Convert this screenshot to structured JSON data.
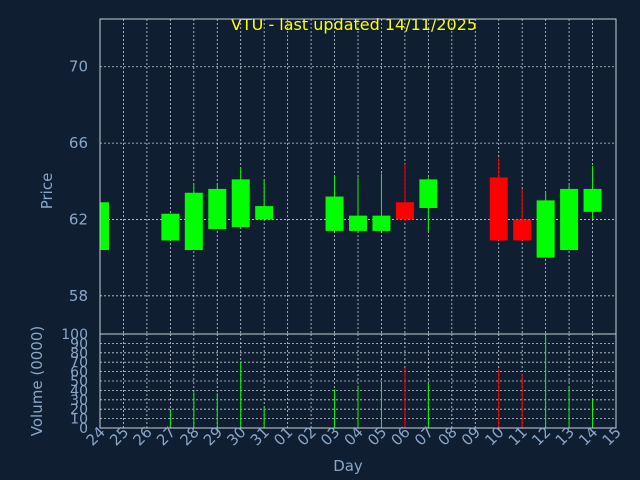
{
  "chart_data": [
    {
      "type": "candlestick",
      "title": "VTU - last updated 14/11/2025",
      "ylabel": "Price",
      "xlabel": "Day",
      "ylim": [
        56,
        72.5
      ],
      "yticks": [
        58,
        62,
        66,
        70
      ],
      "colors": {
        "up": "#00ff00",
        "down": "#ff0000"
      },
      "categories": [
        "24",
        "25",
        "26",
        "27",
        "28",
        "29",
        "30",
        "31",
        "01",
        "02",
        "03",
        "04",
        "05",
        "06",
        "07",
        "08",
        "09",
        "10",
        "11",
        "12",
        "13",
        "14",
        "15"
      ],
      "candles": [
        {
          "day": "24",
          "open": 60.4,
          "high": 62.9,
          "low": 60.4,
          "close": 62.9
        },
        {
          "day": "27",
          "open": 60.9,
          "high": 62.3,
          "low": 60.9,
          "close": 62.3
        },
        {
          "day": "28",
          "open": 60.4,
          "high": 63.8,
          "low": 60.4,
          "close": 63.4
        },
        {
          "day": "29",
          "open": 61.5,
          "high": 63.9,
          "low": 61.5,
          "close": 63.6
        },
        {
          "day": "30",
          "open": 61.6,
          "high": 64.7,
          "low": 61.6,
          "close": 64.1
        },
        {
          "day": "31",
          "open": 62.0,
          "high": 64.1,
          "low": 62.0,
          "close": 62.7
        },
        {
          "day": "03",
          "open": 61.4,
          "high": 64.3,
          "low": 61.4,
          "close": 63.2
        },
        {
          "day": "04",
          "open": 61.4,
          "high": 64.2,
          "low": 61.4,
          "close": 62.2
        },
        {
          "day": "05",
          "open": 61.4,
          "high": 64.4,
          "low": 61.4,
          "close": 62.2
        },
        {
          "day": "06",
          "open": 62.9,
          "high": 64.9,
          "low": 61.9,
          "close": 62.0
        },
        {
          "day": "07",
          "open": 62.6,
          "high": 64.2,
          "low": 61.4,
          "close": 64.1
        },
        {
          "day": "10",
          "open": 64.2,
          "high": 65.2,
          "low": 60.9,
          "close": 60.9
        },
        {
          "day": "11",
          "open": 62.0,
          "high": 63.6,
          "low": 60.9,
          "close": 60.9
        },
        {
          "day": "12",
          "open": 60.0,
          "high": 63.4,
          "low": 60.0,
          "close": 63.0
        },
        {
          "day": "13",
          "open": 60.4,
          "high": 63.8,
          "low": 60.4,
          "close": 63.6
        },
        {
          "day": "14",
          "open": 62.4,
          "high": 64.8,
          "low": 62.0,
          "close": 63.6
        }
      ]
    },
    {
      "type": "bar",
      "ylabel": "Volume (0000)",
      "xlabel": "Day",
      "ylim": [
        0,
        100
      ],
      "yticks": [
        0,
        10,
        20,
        30,
        40,
        50,
        60,
        70,
        80,
        90,
        100
      ],
      "volumes": [
        {
          "day": "27",
          "value": 20,
          "direction": "up"
        },
        {
          "day": "28",
          "value": 38,
          "direction": "up"
        },
        {
          "day": "29",
          "value": 37,
          "direction": "up"
        },
        {
          "day": "30",
          "value": 71,
          "direction": "up"
        },
        {
          "day": "31",
          "value": 21,
          "direction": "up"
        },
        {
          "day": "03",
          "value": 41,
          "direction": "up"
        },
        {
          "day": "04",
          "value": 45,
          "direction": "up"
        },
        {
          "day": "05",
          "value": 48,
          "direction": "up"
        },
        {
          "day": "06",
          "value": 64,
          "direction": "down"
        },
        {
          "day": "07",
          "value": 48,
          "direction": "up"
        },
        {
          "day": "10",
          "value": 63,
          "direction": "down"
        },
        {
          "day": "11",
          "value": 57,
          "direction": "down"
        },
        {
          "day": "12",
          "value": 100,
          "direction": "up"
        },
        {
          "day": "13",
          "value": 44,
          "direction": "up"
        },
        {
          "day": "14",
          "value": 31,
          "direction": "up"
        }
      ]
    }
  ]
}
